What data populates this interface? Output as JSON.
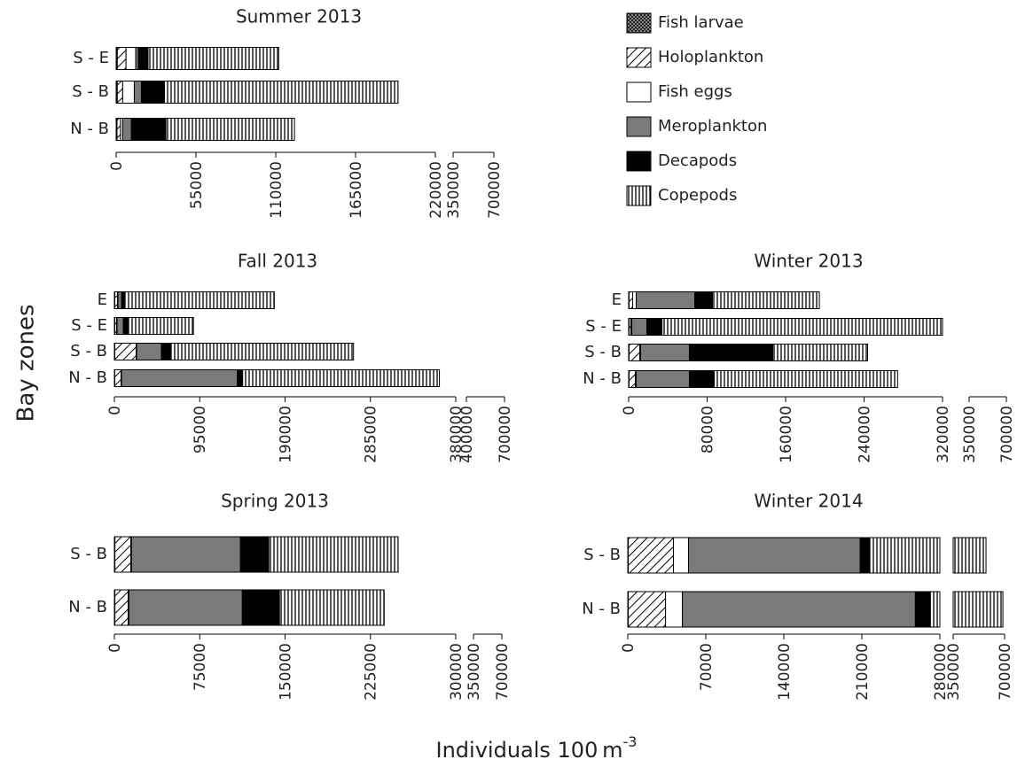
{
  "chart_data": [
    {
      "type": "bar",
      "orientation": "horizontal",
      "stacked": true,
      "title": "Summer 2013",
      "categories": [
        "S - E",
        "S - B",
        "N - B"
      ],
      "series": [
        {
          "name": "Fish larvae",
          "fill": "url(#p-larvae)",
          "values": [
            800,
            800,
            600
          ]
        },
        {
          "name": "Holoplankton",
          "fill": "url(#p-holo)",
          "values": [
            6000,
            3700,
            2400
          ]
        },
        {
          "name": "Fish eggs",
          "fill": "#ffffff",
          "values": [
            6700,
            8000,
            1500
          ]
        },
        {
          "name": "Meroplankton",
          "fill": "#7a7a7a",
          "values": [
            1800,
            4900,
            6000
          ]
        },
        {
          "name": "Decapods",
          "fill": "#000000",
          "values": [
            6700,
            15900,
            23800
          ]
        },
        {
          "name": "Copepods",
          "fill": "url(#p-cop)",
          "values": [
            90000,
            161000,
            88600
          ]
        }
      ],
      "xlim": [
        0,
        700000
      ],
      "xbreak": [
        220000,
        350000
      ],
      "xticks": [
        0,
        55000,
        110000,
        165000,
        220000,
        350000,
        700000
      ]
    },
    {
      "type": "bar",
      "orientation": "horizontal",
      "stacked": true,
      "title": "Fall 2013",
      "categories": [
        "E",
        "S - E",
        "S - B",
        "N - B"
      ],
      "series": [
        {
          "values": [
            500,
            500,
            500,
            500
          ]
        },
        {
          "values": [
            3000,
            2000,
            23700,
            6900
          ]
        },
        {
          "values": [
            500,
            500,
            500,
            500
          ]
        },
        {
          "values": [
            4000,
            7000,
            27600,
            129000
          ]
        },
        {
          "values": [
            3000,
            5000,
            9900,
            5900
          ]
        },
        {
          "values": [
            167000,
            73000,
            204000,
            219000
          ]
        }
      ],
      "xlim": [
        0,
        700000
      ],
      "xbreak": [
        380000,
        400000
      ],
      "xticks": [
        0,
        95000,
        190000,
        285000,
        380000,
        400000,
        700000
      ]
    },
    {
      "type": "bar",
      "orientation": "horizontal",
      "stacked": true,
      "title": "Winter 2013",
      "categories": [
        "E",
        "S - E",
        "S - B",
        "N - B"
      ],
      "series": [
        {
          "values": [
            500,
            500,
            500,
            500
          ]
        },
        {
          "values": [
            3600,
            1800,
            10800,
            6300
          ]
        },
        {
          "values": [
            3600,
            900,
            900,
            900
          ]
        },
        {
          "values": [
            59700,
            15400,
            49700,
            54200
          ]
        },
        {
          "values": [
            18000,
            15400,
            85000,
            25300
          ]
        },
        {
          "values": [
            109000,
            298000,
            96700,
            187000
          ]
        }
      ],
      "xlim": [
        0,
        700000
      ],
      "xbreak": [
        320000,
        350000
      ],
      "xticks": [
        0,
        80000,
        160000,
        240000,
        320000,
        350000,
        700000
      ]
    },
    {
      "type": "bar",
      "orientation": "horizontal",
      "stacked": true,
      "title": "Spring 2013",
      "categories": [
        "S - B",
        "N - B"
      ],
      "series": [
        {
          "values": [
            500,
            500
          ]
        },
        {
          "values": [
            14000,
            11700
          ]
        },
        {
          "values": [
            500,
            500
          ]
        },
        {
          "values": [
            95800,
            99700
          ]
        },
        {
          "values": [
            24900,
            32700
          ]
        },
        {
          "values": [
            113700,
            92000
          ]
        }
      ],
      "xlim": [
        0,
        700000
      ],
      "xbreak": [
        300000,
        350000
      ],
      "xticks": [
        0,
        75000,
        150000,
        225000,
        300000,
        350000,
        700000
      ]
    },
    {
      "type": "bar",
      "orientation": "horizontal",
      "stacked": true,
      "title": "Winter 2014",
      "categories": [
        "S - B",
        "N - B"
      ],
      "series": [
        {
          "values": [
            500,
            500
          ]
        },
        {
          "values": [
            40500,
            33400
          ]
        },
        {
          "values": [
            13500,
            15100
          ]
        },
        {
          "values": [
            154000,
            209000
          ]
        },
        {
          "values": [
            8000,
            13500
          ]
        },
        {
          "values": [
            357000,
            417000
          ]
        }
      ],
      "xlim": [
        0,
        700000
      ],
      "xbreak": [
        280000,
        350000
      ],
      "xticks": [
        0,
        70000,
        140000,
        210000,
        280000,
        350000,
        700000
      ]
    }
  ],
  "figure": {
    "ylabel": "Bay zones",
    "xlabel": "Individuals 100 m",
    "xlabel_sup": "-3"
  }
}
